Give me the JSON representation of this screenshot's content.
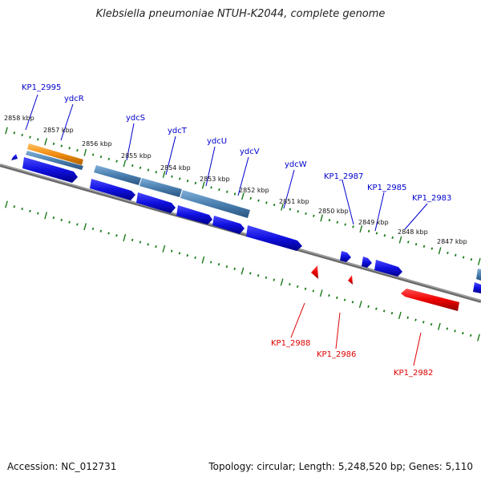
{
  "title": "Klebsiella pneumoniae NTUH-K2044, complete genome",
  "footer": {
    "accession": "Accession: NC_012731",
    "summary": "Topology: circular; Length: 5,248,520 bp; Genes: 5,110"
  },
  "colors": {
    "forward_gene": "#1010e0",
    "reverse_gene": "#ee0000",
    "steel_feature": "#4a7fb0",
    "orange_feature": "#f08c10",
    "backbone": "#808080",
    "tick": "#1a7a1a",
    "forward_label": "#0000cc",
    "reverse_label": "#dd0000"
  },
  "scale_labels": [
    "2858 kbp",
    "2857 kbp",
    "2856 kbp",
    "2855 kbp",
    "2854 kbp",
    "2853 kbp",
    "2852 kbp",
    "2851 kbp",
    "2850 kbp",
    "2849 kbp",
    "2848 kbp",
    "2847 kbp"
  ],
  "genes_forward": [
    "KP1_2995",
    "ydcR",
    "ydcS",
    "ydcT",
    "ydcU",
    "ydcV",
    "ydcW",
    "KP1_2987",
    "KP1_2985",
    "KP1_2983"
  ],
  "genes_reverse": [
    "KP1_2988",
    "KP1_2986",
    "KP1_2982"
  ]
}
